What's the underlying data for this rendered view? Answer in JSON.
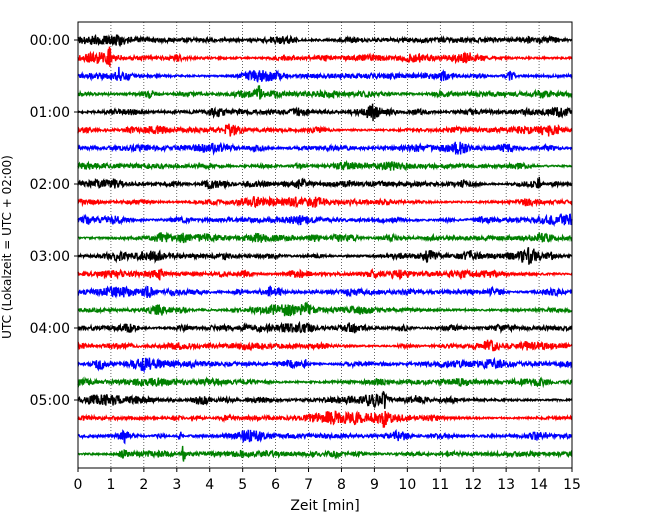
{
  "chart_data": {
    "type": "line",
    "title": "",
    "xlabel": "Zeit  [min]",
    "ylabel": "UTC (Lokalzeit = UTC + 02:00)",
    "xlim": [
      0,
      15
    ],
    "x_ticks": [
      0,
      1,
      2,
      3,
      4,
      5,
      6,
      7,
      8,
      9,
      10,
      11,
      12,
      13,
      14,
      15
    ],
    "x_tick_labels": [
      "0",
      "1",
      "2",
      "3",
      "4",
      "5",
      "6",
      "7",
      "8",
      "9",
      "10",
      "11",
      "12",
      "13",
      "14",
      "15"
    ],
    "y_ticks": [
      {
        "trace": 0,
        "label": "00:00"
      },
      {
        "trace": 4,
        "label": "01:00"
      },
      {
        "trace": 8,
        "label": "02:00"
      },
      {
        "trace": 12,
        "label": "03:00"
      },
      {
        "trace": 16,
        "label": "04:00"
      },
      {
        "trace": 20,
        "label": "05:00"
      }
    ],
    "vertical_gridlines": "dotted at every minute",
    "trace_minutes": 15,
    "trace_count": 24,
    "trace_colors": [
      "#000000",
      "#ff0000",
      "#0000ff",
      "#008000"
    ],
    "notable_events": [
      {
        "trace": 1,
        "minute": 0.95,
        "amplitude": 2.2
      },
      {
        "trace": 2,
        "minute": 1.25,
        "amplitude": 1.4
      },
      {
        "trace": 3,
        "minute": 5.5,
        "amplitude": 1.2
      },
      {
        "trace": 6,
        "minute": 5.6,
        "amplitude": 1.0
      },
      {
        "trace": 8,
        "minute": 14.0,
        "amplitude": 1.2
      },
      {
        "trace": 13,
        "minute": 2.5,
        "amplitude": 1.2
      },
      {
        "trace": 14,
        "minute": 5.8,
        "amplitude": 1.2
      },
      {
        "trace": 16,
        "minute": 5.1,
        "amplitude": 1.3
      },
      {
        "trace": 18,
        "minute": 6.9,
        "amplitude": 1.4
      },
      {
        "trace": 20,
        "minute": 9.3,
        "amplitude": 1.3
      },
      {
        "trace": 21,
        "minute": 9.3,
        "amplitude": 1.3
      },
      {
        "trace": 22,
        "minute": 3.1,
        "amplitude": 1.3
      },
      {
        "trace": 23,
        "minute": 3.2,
        "amplitude": 2.0
      }
    ]
  }
}
